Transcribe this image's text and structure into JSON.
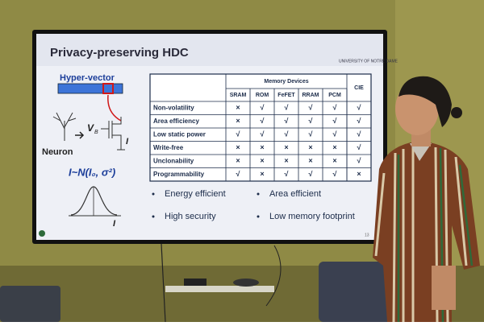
{
  "slide": {
    "title": "Privacy-preserving HDC",
    "logo": "UNIVERSITY OF NOTRE DAME",
    "diagram": {
      "vector_label": "Hyper-vector",
      "neuron_label": "Neuron",
      "voltage": "V",
      "voltage_sub": "B",
      "current": "I",
      "formula": "I~N(I₀, σ²)",
      "axis_label": "I"
    },
    "table": {
      "group_header": "Memory Devices",
      "columns": [
        "SRAM",
        "ROM",
        "FeFET",
        "RRAM",
        "PCM",
        "CIE"
      ],
      "rows": [
        [
          "Non-volatility",
          "×",
          "√",
          "√",
          "√",
          "√",
          "√"
        ],
        [
          "Area efficiency",
          "×",
          "√",
          "√",
          "√",
          "√",
          "√"
        ],
        [
          "Low static power",
          "√",
          "√",
          "√",
          "√",
          "√",
          "√"
        ],
        [
          "Write-free",
          "×",
          "×",
          "×",
          "×",
          "×",
          "√"
        ],
        [
          "Unclonability",
          "×",
          "×",
          "×",
          "×",
          "×",
          "√"
        ],
        [
          "Programmability",
          "√",
          "×",
          "√",
          "√",
          "√",
          "×"
        ]
      ]
    },
    "bullets": [
      "Energy efficient",
      "Area efficient",
      "High security",
      "Low memory footprint"
    ],
    "page_number": "13"
  }
}
